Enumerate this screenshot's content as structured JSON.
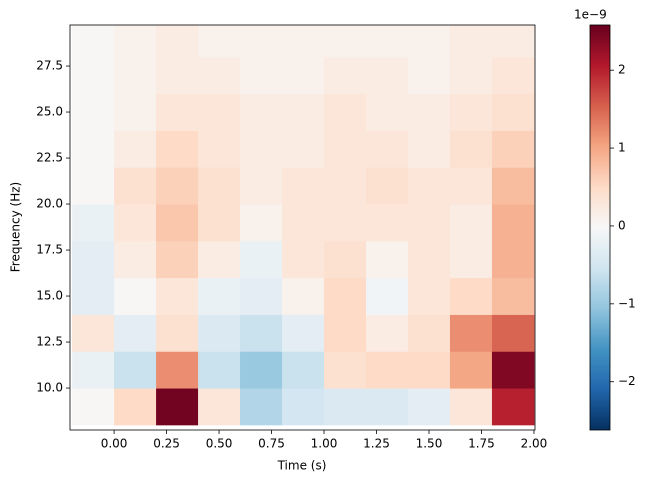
{
  "chart_data": {
    "type": "heatmap",
    "xlabel": "Time (s)",
    "ylabel": "Frequency (Hz)",
    "x": [
      -0.1,
      0.1,
      0.3,
      0.5,
      0.7,
      0.9,
      1.1,
      1.3,
      1.5,
      1.7,
      1.9
    ],
    "y": [
      9,
      11,
      13,
      15,
      17,
      19,
      21,
      23,
      25,
      27,
      29
    ],
    "z": [
      [
        0,
        0.5,
        2.5,
        0.3,
        -0.8,
        -0.5,
        -0.4,
        -0.4,
        -0.3,
        0.3,
        2.0
      ],
      [
        -0.2,
        -0.6,
        1.2,
        -0.6,
        -1.0,
        -0.6,
        0.4,
        0.5,
        0.5,
        1.0,
        2.4
      ],
      [
        0.3,
        -0.3,
        0.4,
        -0.4,
        -0.6,
        -0.3,
        0.5,
        0.2,
        0.4,
        1.2,
        1.5
      ],
      [
        -0.3,
        0,
        0.3,
        -0.2,
        -0.3,
        0.1,
        0.5,
        -0.1,
        0.3,
        0.5,
        0.8
      ],
      [
        -0.3,
        0.2,
        0.6,
        0.2,
        -0.2,
        0.3,
        0.4,
        0.1,
        0.3,
        0.2,
        0.9
      ],
      [
        -0.2,
        0.3,
        0.7,
        0.4,
        0.1,
        0.3,
        0.3,
        0.3,
        0.3,
        0.2,
        0.9
      ],
      [
        0,
        0.4,
        0.6,
        0.4,
        0.2,
        0.3,
        0.3,
        0.4,
        0.3,
        0.3,
        0.8
      ],
      [
        0,
        0.2,
        0.5,
        0.3,
        0.2,
        0.2,
        0.3,
        0.3,
        0.2,
        0.4,
        0.6
      ],
      [
        0,
        0.1,
        0.3,
        0.3,
        0.2,
        0.2,
        0.3,
        0.2,
        0.2,
        0.3,
        0.4
      ],
      [
        0,
        0.1,
        0.2,
        0.2,
        0.1,
        0.1,
        0.2,
        0.2,
        0.1,
        0.2,
        0.3
      ],
      [
        0,
        0.1,
        0.2,
        0.1,
        0.1,
        0.1,
        0.1,
        0.1,
        0.1,
        0.2,
        0.2
      ]
    ],
    "xlim": [
      -0.21,
      2.005
    ],
    "ylim": [
      7.72,
      29.73
    ],
    "xticks": [
      {
        "value": 0,
        "label": "0.00"
      },
      {
        "value": 0.25,
        "label": "0.25"
      },
      {
        "value": 0.5,
        "label": "0.50"
      },
      {
        "value": 0.75,
        "label": "0.75"
      },
      {
        "value": 1,
        "label": "1.00"
      },
      {
        "value": 1.25,
        "label": "1.25"
      },
      {
        "value": 1.5,
        "label": "1.50"
      },
      {
        "value": 1.75,
        "label": "1.75"
      },
      {
        "value": 2,
        "label": "2.00"
      }
    ],
    "yticks": [
      {
        "value": 10,
        "label": "10.0"
      },
      {
        "value": 12.5,
        "label": "12.5"
      },
      {
        "value": 15,
        "label": "15.0"
      },
      {
        "value": 17.5,
        "label": "17.5"
      },
      {
        "value": 20,
        "label": "20.0"
      },
      {
        "value": 22.5,
        "label": "22.5"
      },
      {
        "value": 25,
        "label": "25.0"
      },
      {
        "value": 27.5,
        "label": "27.5"
      }
    ],
    "colormap": "RdBu_r",
    "clim": [
      -2.62,
      2.58
    ],
    "cticks": [
      {
        "value": -2,
        "label": "−2"
      },
      {
        "value": -1,
        "label": "−1"
      },
      0,
      1,
      2
    ],
    "colorbar_offset": "1e−9"
  }
}
